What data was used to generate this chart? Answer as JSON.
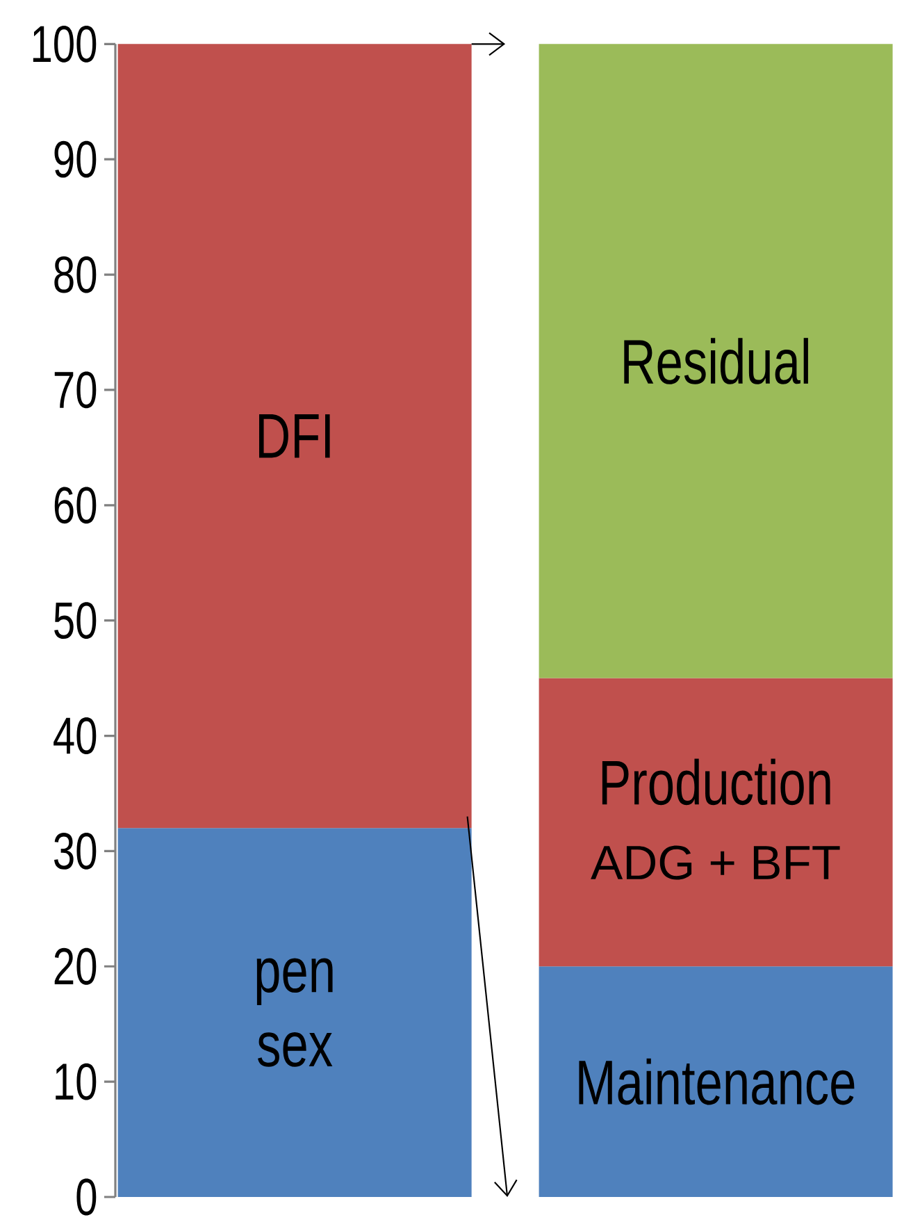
{
  "chart_data": {
    "type": "bar",
    "stacked": true,
    "categories": [
      null,
      null
    ],
    "ylim": [
      0,
      100
    ],
    "yticks": [
      0,
      10,
      20,
      30,
      40,
      50,
      60,
      70,
      80,
      90,
      100
    ],
    "series": [
      {
        "name": "pen sex",
        "color": "#4f81bd",
        "values": [
          32,
          null
        ]
      },
      {
        "name": "Maintenance",
        "color": "#4f81bd",
        "values": [
          null,
          20
        ]
      },
      {
        "name": "DFI",
        "color": "#c0504d",
        "values": [
          68,
          null
        ]
      },
      {
        "name": "Production",
        "color": "#c0504d",
        "values": [
          null,
          25
        ]
      },
      {
        "name": "Residual",
        "color": "#9bbb59",
        "values": [
          null,
          55
        ]
      }
    ],
    "annotations": [
      "ADG + BFT"
    ]
  }
}
